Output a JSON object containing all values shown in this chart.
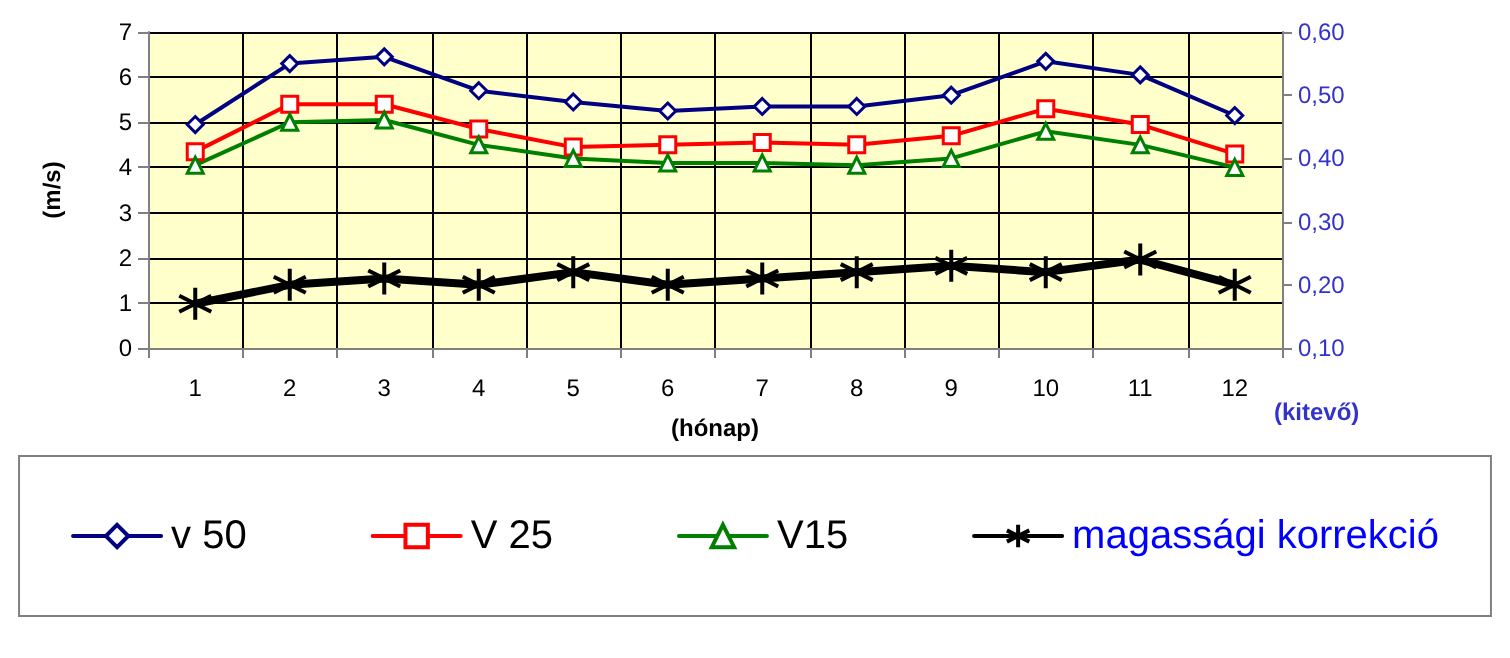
{
  "chart_data": {
    "type": "line",
    "categories": [
      "1",
      "2",
      "3",
      "4",
      "5",
      "6",
      "7",
      "8",
      "9",
      "10",
      "11",
      "12"
    ],
    "xlabel": "(hónap)",
    "ylabel": "(m/s)",
    "y2label": "(kitevő)",
    "ylim": [
      0,
      7
    ],
    "yticks": [
      0,
      1,
      2,
      3,
      4,
      5,
      6,
      7
    ],
    "y2lim": [
      0.1,
      0.6
    ],
    "y2ticks": [
      {
        "value": 0.1,
        "label": "0,10"
      },
      {
        "value": 0.2,
        "label": "0,20"
      },
      {
        "value": 0.3,
        "label": "0,30"
      },
      {
        "value": 0.4,
        "label": "0,40"
      },
      {
        "value": 0.5,
        "label": "0,50"
      },
      {
        "value": 0.6,
        "label": "0,60"
      }
    ],
    "grid": true,
    "legend": "bottom",
    "series": [
      {
        "name": "v 50",
        "color": "#000080",
        "marker": "diamond",
        "values": [
          4.95,
          6.3,
          6.45,
          5.7,
          5.45,
          5.25,
          5.35,
          5.35,
          5.6,
          6.35,
          6.05,
          5.15
        ]
      },
      {
        "name": "V 25",
        "color": "#ff0000",
        "marker": "square",
        "values": [
          4.35,
          5.4,
          5.4,
          4.85,
          4.45,
          4.5,
          4.55,
          4.5,
          4.7,
          5.3,
          4.95,
          4.3
        ]
      },
      {
        "name": "V15",
        "color": "#008000",
        "marker": "triangle",
        "values": [
          4.05,
          5.0,
          5.05,
          4.5,
          4.2,
          4.1,
          4.1,
          4.05,
          4.2,
          4.8,
          4.5,
          4.0
        ]
      },
      {
        "name": "magassági korrekció",
        "color": "#000000",
        "marker": "cross",
        "axis": "y2",
        "values": [
          0.17,
          0.2,
          0.21,
          0.2,
          0.22,
          0.2,
          0.21,
          0.22,
          0.23,
          0.22,
          0.24,
          0.2
        ]
      }
    ]
  }
}
